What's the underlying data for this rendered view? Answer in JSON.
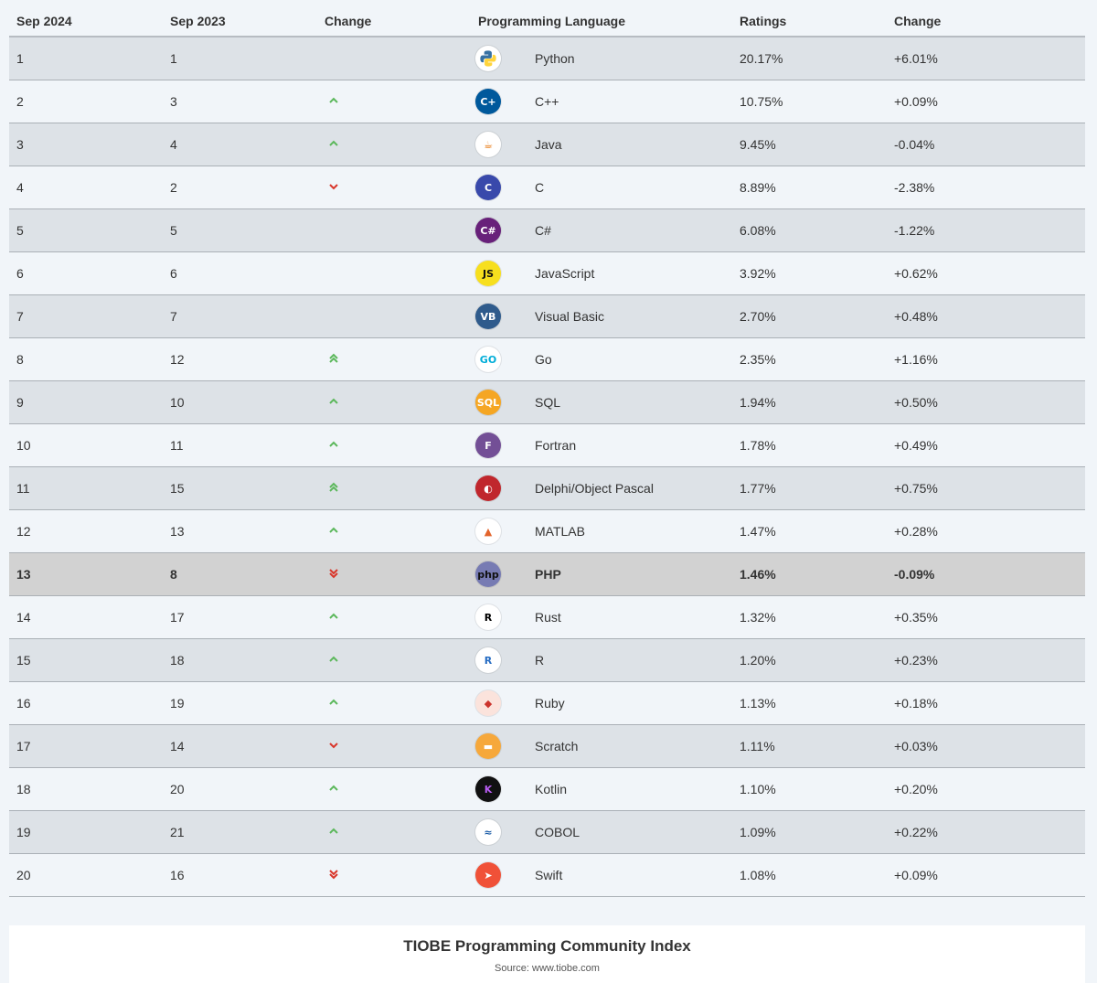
{
  "table": {
    "headers": [
      "Sep 2024",
      "Sep 2023",
      "Change",
      "Programming Language",
      "",
      "Ratings",
      "Change"
    ],
    "rows": [
      {
        "rank_2024": "1",
        "rank_2023": "1",
        "trend": "none",
        "logo_icon": "python-logo-icon",
        "logo_text": "",
        "logo_bg": "#ffffff",
        "logo_fg": "#3671a3",
        "language": "Python",
        "rating": "20.17%",
        "change": "+6.01%"
      },
      {
        "rank_2024": "2",
        "rank_2023": "3",
        "trend": "up",
        "logo_icon": "cpp-logo-icon",
        "logo_text": "C+",
        "logo_bg": "#00599c",
        "logo_fg": "#ffffff",
        "language": "C++",
        "rating": "10.75%",
        "change": "+0.09%"
      },
      {
        "rank_2024": "3",
        "rank_2023": "4",
        "trend": "up",
        "logo_icon": "java-logo-icon",
        "logo_text": "☕",
        "logo_bg": "#ffffff",
        "logo_fg": "#e76f00",
        "language": "Java",
        "rating": "9.45%",
        "change": "-0.04%"
      },
      {
        "rank_2024": "4",
        "rank_2023": "2",
        "trend": "down",
        "logo_icon": "c-logo-icon",
        "logo_text": "C",
        "logo_bg": "#3949ab",
        "logo_fg": "#ffffff",
        "language": "C",
        "rating": "8.89%",
        "change": "-2.38%"
      },
      {
        "rank_2024": "5",
        "rank_2023": "5",
        "trend": "none",
        "logo_icon": "csharp-logo-icon",
        "logo_text": "C#",
        "logo_bg": "#68217a",
        "logo_fg": "#ffffff",
        "language": "C#",
        "rating": "6.08%",
        "change": "-1.22%"
      },
      {
        "rank_2024": "6",
        "rank_2023": "6",
        "trend": "none",
        "logo_icon": "javascript-logo-icon",
        "logo_text": "JS",
        "logo_bg": "#f7df1e",
        "logo_fg": "#111111",
        "language": "JavaScript",
        "rating": "3.92%",
        "change": "+0.62%"
      },
      {
        "rank_2024": "7",
        "rank_2023": "7",
        "trend": "none",
        "logo_icon": "visualbasic-logo-icon",
        "logo_text": "VB",
        "logo_bg": "#2f5b8c",
        "logo_fg": "#ffffff",
        "language": "Visual Basic",
        "rating": "2.70%",
        "change": "+0.48%"
      },
      {
        "rank_2024": "8",
        "rank_2023": "12",
        "trend": "double-up",
        "logo_icon": "go-logo-icon",
        "logo_text": "GO",
        "logo_bg": "#ffffff",
        "logo_fg": "#00add8",
        "language": "Go",
        "rating": "2.35%",
        "change": "+1.16%"
      },
      {
        "rank_2024": "9",
        "rank_2023": "10",
        "trend": "up",
        "logo_icon": "sql-logo-icon",
        "logo_text": "SQL",
        "logo_bg": "#f5a623",
        "logo_fg": "#ffffff",
        "language": "SQL",
        "rating": "1.94%",
        "change": "+0.50%"
      },
      {
        "rank_2024": "10",
        "rank_2023": "11",
        "trend": "up",
        "logo_icon": "fortran-logo-icon",
        "logo_text": "F",
        "logo_bg": "#734f96",
        "logo_fg": "#ffffff",
        "language": "Fortran",
        "rating": "1.78%",
        "change": "+0.49%"
      },
      {
        "rank_2024": "11",
        "rank_2023": "15",
        "trend": "double-up",
        "logo_icon": "delphi-logo-icon",
        "logo_text": "◐",
        "logo_bg": "#c0272d",
        "logo_fg": "#ffffff",
        "language": "Delphi/Object Pascal",
        "rating": "1.77%",
        "change": "+0.75%"
      },
      {
        "rank_2024": "12",
        "rank_2023": "13",
        "trend": "up",
        "logo_icon": "matlab-logo-icon",
        "logo_text": "▲",
        "logo_bg": "#ffffff",
        "logo_fg": "#e3642b",
        "language": "MATLAB",
        "rating": "1.47%",
        "change": "+0.28%"
      },
      {
        "rank_2024": "13",
        "rank_2023": "8",
        "trend": "double-down",
        "logo_icon": "php-logo-icon",
        "logo_text": "php",
        "logo_bg": "#777bb3",
        "logo_fg": "#111111",
        "language": "PHP",
        "rating": "1.46%",
        "change": "-0.09%",
        "highlight": true
      },
      {
        "rank_2024": "14",
        "rank_2023": "17",
        "trend": "up",
        "logo_icon": "rust-logo-icon",
        "logo_text": "R",
        "logo_bg": "#ffffff",
        "logo_fg": "#000000",
        "language": "Rust",
        "rating": "1.32%",
        "change": "+0.35%"
      },
      {
        "rank_2024": "15",
        "rank_2023": "18",
        "trend": "up",
        "logo_icon": "r-logo-icon",
        "logo_text": "R",
        "logo_bg": "#ffffff",
        "logo_fg": "#276dc3",
        "language": "R",
        "rating": "1.20%",
        "change": "+0.23%"
      },
      {
        "rank_2024": "16",
        "rank_2023": "19",
        "trend": "up",
        "logo_icon": "ruby-logo-icon",
        "logo_text": "◆",
        "logo_bg": "#fbe3dc",
        "logo_fg": "#cc342d",
        "language": "Ruby",
        "rating": "1.13%",
        "change": "+0.18%"
      },
      {
        "rank_2024": "17",
        "rank_2023": "14",
        "trend": "down",
        "logo_icon": "scratch-logo-icon",
        "logo_text": "▬",
        "logo_bg": "#f6a83b",
        "logo_fg": "#ffffff",
        "language": "Scratch",
        "rating": "1.11%",
        "change": "+0.03%"
      },
      {
        "rank_2024": "18",
        "rank_2023": "20",
        "trend": "up",
        "logo_icon": "kotlin-logo-icon",
        "logo_text": "K",
        "logo_bg": "#111111",
        "logo_fg": "#b75cf0",
        "language": "Kotlin",
        "rating": "1.10%",
        "change": "+0.20%"
      },
      {
        "rank_2024": "19",
        "rank_2023": "21",
        "trend": "up",
        "logo_icon": "cobol-logo-icon",
        "logo_text": "≈",
        "logo_bg": "#ffffff",
        "logo_fg": "#1f5fa8",
        "language": "COBOL",
        "rating": "1.09%",
        "change": "+0.22%"
      },
      {
        "rank_2024": "20",
        "rank_2023": "16",
        "trend": "double-down",
        "logo_icon": "swift-logo-icon",
        "logo_text": "➤",
        "logo_bg": "#f05138",
        "logo_fg": "#ffffff",
        "language": "Swift",
        "rating": "1.08%",
        "change": "+0.09%"
      }
    ]
  },
  "caption": {
    "title": "TIOBE Programming Community Index",
    "source": "Source: www.tiobe.com"
  },
  "colors": {
    "trend_up": "#5cb85c",
    "trend_down": "#d9362b"
  }
}
